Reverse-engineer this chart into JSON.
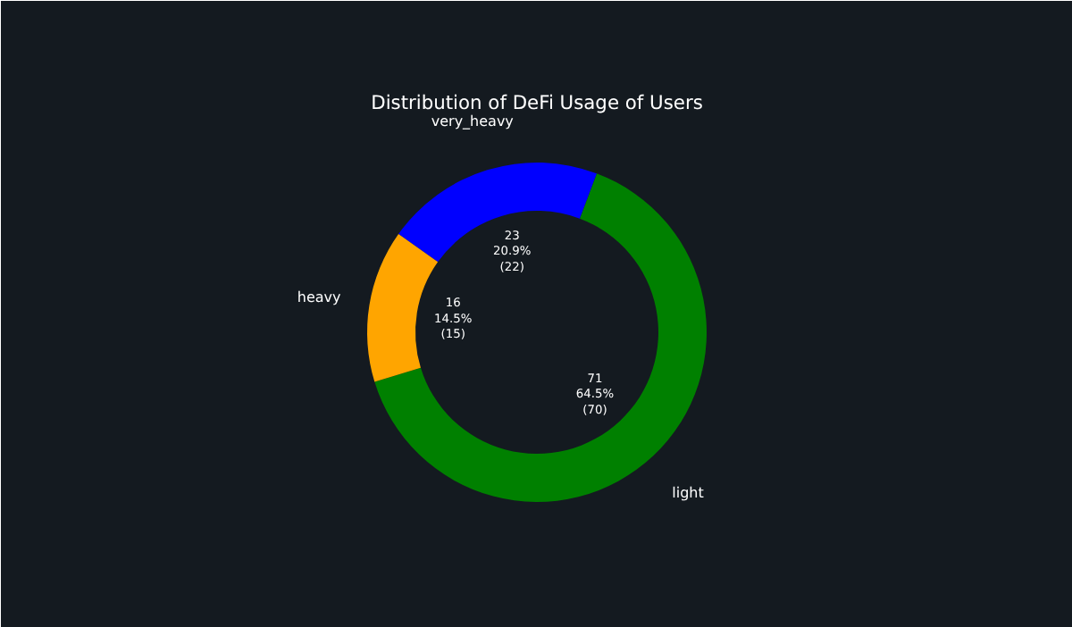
{
  "chart_data": {
    "type": "donut",
    "title": "Distribution of DeFi Usage of Users",
    "categories": [
      "light",
      "very_heavy",
      "heavy"
    ],
    "values": [
      71,
      23,
      16
    ],
    "colors": [
      "#008000",
      "#0000ff",
      "#ffa500"
    ],
    "value_labels": [
      "71\n64.5%\n(70)",
      "23\n20.9%\n(22)",
      "16\n14.5%\n(15)"
    ]
  }
}
